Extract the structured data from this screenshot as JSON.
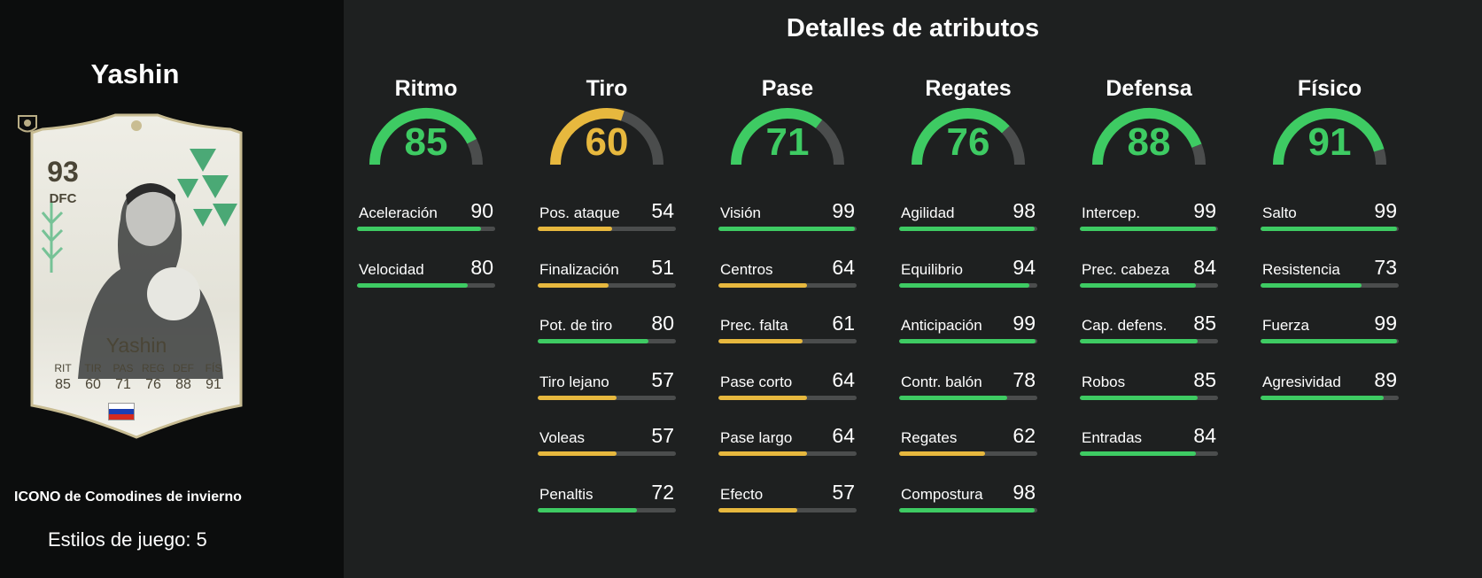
{
  "player": {
    "name": "Yashin",
    "card": {
      "rating": "93",
      "position": "DFC",
      "name": "Yashin",
      "stats": [
        {
          "label": "RIT",
          "value": "85"
        },
        {
          "label": "TIR",
          "value": "60"
        },
        {
          "label": "PAS",
          "value": "71"
        },
        {
          "label": "REG",
          "value": "76"
        },
        {
          "label": "DEF",
          "value": "88"
        },
        {
          "label": "FÍS",
          "value": "91"
        }
      ],
      "flag_colors": [
        "#ffffff",
        "#1c3fb3",
        "#d52b1e"
      ],
      "icons": [
        "player-portrait",
        "russia-flag-icon",
        "icon-badge-icon",
        "crest-icon"
      ]
    },
    "version": "ICONO de Comodines de invierno",
    "playstyles": "Estilos de juego: 5"
  },
  "title": "Detalles de atributos",
  "colors": {
    "green": "#3ecb63",
    "yellow": "#e7b83e",
    "track": "#4b4d4d",
    "background": "#1e2020",
    "left_panel": "#0c0d0d"
  },
  "groups": [
    {
      "name": "Ritmo",
      "value": 85,
      "value_text": "85",
      "color": "#3ecb63",
      "stats": [
        {
          "label": "Aceleración",
          "value": 90,
          "value_text": "90",
          "color": "#3ecb63"
        },
        {
          "label": "Velocidad",
          "value": 80,
          "value_text": "80",
          "color": "#3ecb63"
        }
      ]
    },
    {
      "name": "Tiro",
      "value": 60,
      "value_text": "60",
      "color": "#e7b83e",
      "stats": [
        {
          "label": "Pos. ataque",
          "value": 54,
          "value_text": "54",
          "color": "#e7b83e"
        },
        {
          "label": "Finalización",
          "value": 51,
          "value_text": "51",
          "color": "#e7b83e"
        },
        {
          "label": "Pot. de tiro",
          "value": 80,
          "value_text": "80",
          "color": "#3ecb63"
        },
        {
          "label": "Tiro lejano",
          "value": 57,
          "value_text": "57",
          "color": "#e7b83e"
        },
        {
          "label": "Voleas",
          "value": 57,
          "value_text": "57",
          "color": "#e7b83e"
        },
        {
          "label": "Penaltis",
          "value": 72,
          "value_text": "72",
          "color": "#3ecb63"
        }
      ]
    },
    {
      "name": "Pase",
      "value": 71,
      "value_text": "71",
      "color": "#3ecb63",
      "stats": [
        {
          "label": "Visión",
          "value": 99,
          "value_text": "99",
          "color": "#3ecb63"
        },
        {
          "label": "Centros",
          "value": 64,
          "value_text": "64",
          "color": "#e7b83e"
        },
        {
          "label": "Prec. falta",
          "value": 61,
          "value_text": "61",
          "color": "#e7b83e"
        },
        {
          "label": "Pase corto",
          "value": 64,
          "value_text": "64",
          "color": "#e7b83e"
        },
        {
          "label": "Pase largo",
          "value": 64,
          "value_text": "64",
          "color": "#e7b83e"
        },
        {
          "label": "Efecto",
          "value": 57,
          "value_text": "57",
          "color": "#e7b83e"
        }
      ]
    },
    {
      "name": "Regates",
      "value": 76,
      "value_text": "76",
      "color": "#3ecb63",
      "stats": [
        {
          "label": "Agilidad",
          "value": 98,
          "value_text": "98",
          "color": "#3ecb63"
        },
        {
          "label": "Equilibrio",
          "value": 94,
          "value_text": "94",
          "color": "#3ecb63"
        },
        {
          "label": "Anticipación",
          "value": 99,
          "value_text": "99",
          "color": "#3ecb63"
        },
        {
          "label": "Contr. balón",
          "value": 78,
          "value_text": "78",
          "color": "#3ecb63"
        },
        {
          "label": "Regates",
          "value": 62,
          "value_text": "62",
          "color": "#e7b83e"
        },
        {
          "label": "Compostura",
          "value": 98,
          "value_text": "98",
          "color": "#3ecb63"
        }
      ]
    },
    {
      "name": "Defensa",
      "value": 88,
      "value_text": "88",
      "color": "#3ecb63",
      "stats": [
        {
          "label": "Intercep.",
          "value": 99,
          "value_text": "99",
          "color": "#3ecb63"
        },
        {
          "label": "Prec. cabeza",
          "value": 84,
          "value_text": "84",
          "color": "#3ecb63"
        },
        {
          "label": "Cap. defens.",
          "value": 85,
          "value_text": "85",
          "color": "#3ecb63"
        },
        {
          "label": "Robos",
          "value": 85,
          "value_text": "85",
          "color": "#3ecb63"
        },
        {
          "label": "Entradas",
          "value": 84,
          "value_text": "84",
          "color": "#3ecb63"
        }
      ]
    },
    {
      "name": "Físico",
      "value": 91,
      "value_text": "91",
      "color": "#3ecb63",
      "stats": [
        {
          "label": "Salto",
          "value": 99,
          "value_text": "99",
          "color": "#3ecb63"
        },
        {
          "label": "Resistencia",
          "value": 73,
          "value_text": "73",
          "color": "#3ecb63"
        },
        {
          "label": "Fuerza",
          "value": 99,
          "value_text": "99",
          "color": "#3ecb63"
        },
        {
          "label": "Agresividad",
          "value": 89,
          "value_text": "89",
          "color": "#3ecb63"
        }
      ]
    }
  ]
}
